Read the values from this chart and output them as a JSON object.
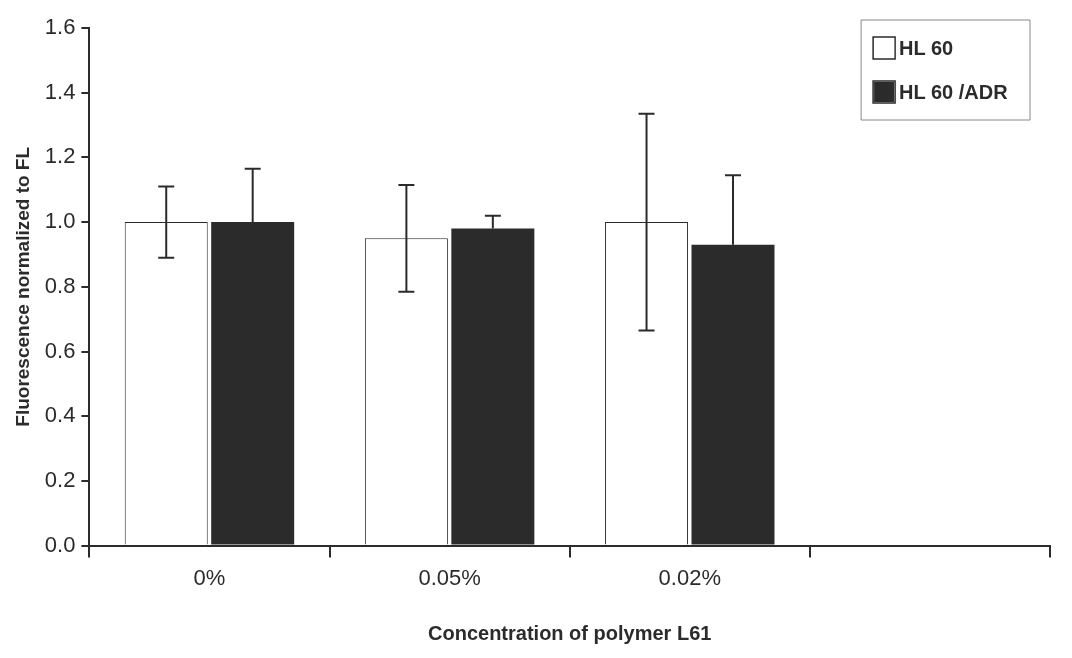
{
  "chart_data": {
    "type": "bar",
    "xlabel": "Concentration of polymer L61",
    "ylabel": "Fluorescence normalized to FL",
    "categories": [
      "0%",
      "0.05%",
      "0.02%",
      null
    ],
    "series": [
      {
        "name": "HL 60",
        "color": "#ffffff",
        "values": [
          1.0,
          0.95,
          1.0,
          null
        ],
        "errors": [
          0.11,
          0.165,
          0.335,
          null
        ]
      },
      {
        "name": "HL 60 /ADR",
        "color": "#2b2b2b",
        "values": [
          1.0,
          0.98,
          0.93,
          null
        ],
        "errors": [
          [
            1.0,
            1.165
          ],
          [
            0.98,
            1.02
          ],
          [
            0.93,
            1.145
          ],
          null
        ]
      }
    ],
    "ylim": [
      0,
      1.6
    ],
    "yticks": [
      {
        "value": 0,
        "label": "0.0"
      },
      0.2,
      0.4,
      0.6,
      0.8,
      {
        "value": 1,
        "label": "1.0"
      },
      1.2,
      1.4,
      1.6
    ],
    "grid": false,
    "legend": "top right"
  }
}
